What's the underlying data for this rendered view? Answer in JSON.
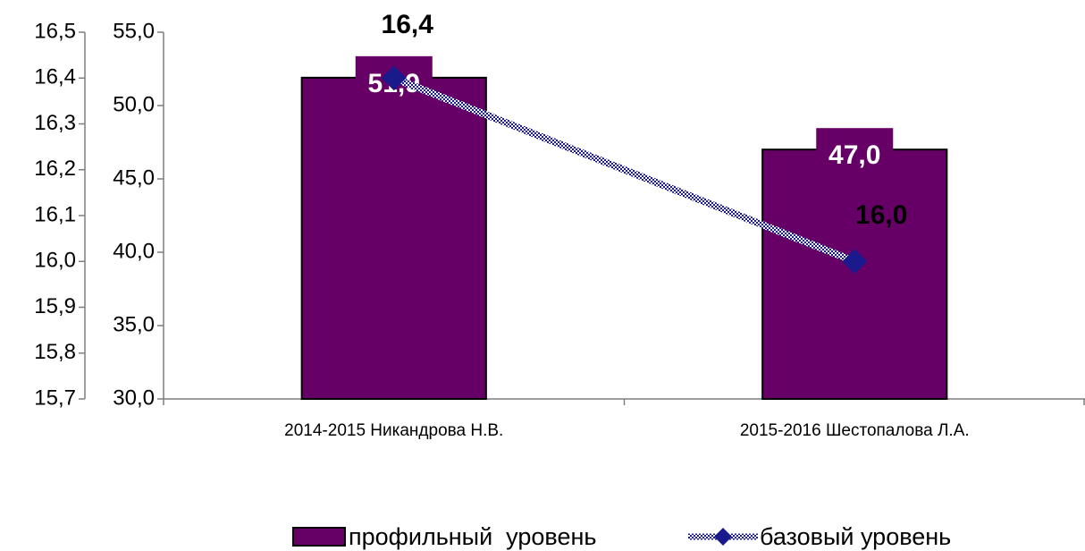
{
  "chart_data": {
    "type": "bar",
    "categories": [
      "2014-2015 Никандрова Н.В.",
      "2015-2016 Шестопалова Л.А."
    ],
    "series": [
      {
        "name": "профильный  уровень",
        "type": "bar",
        "color": "#660066",
        "values": [
          51.9,
          47.0
        ],
        "value_labels": [
          "51,9",
          "47,0"
        ]
      },
      {
        "name": "базовый уровень",
        "type": "line",
        "axis": "y2",
        "color": "#1a1a8c",
        "values": [
          16.4,
          16.0
        ],
        "value_labels": [
          "16,4",
          "16,0"
        ]
      }
    ],
    "ylim": [
      30,
      55
    ],
    "yticks": [
      {
        "value": 30,
        "label": "30,0"
      },
      {
        "value": 35,
        "label": "35,0"
      },
      {
        "value": 40,
        "label": "40,0"
      },
      {
        "value": 45,
        "label": "45,0"
      },
      {
        "value": 50,
        "label": "50,0"
      },
      {
        "value": 55,
        "label": "55,0"
      }
    ],
    "y2lim": [
      15.7,
      16.5
    ],
    "y2ticks": [
      {
        "value": 15.7,
        "label": "15,7"
      },
      {
        "value": 15.8,
        "label": "15,8"
      },
      {
        "value": 15.9,
        "label": "15,9"
      },
      {
        "value": 16.0,
        "label": "16,0"
      },
      {
        "value": 16.1,
        "label": "16,1"
      },
      {
        "value": 16.2,
        "label": "16,2"
      },
      {
        "value": 16.3,
        "label": "16,3"
      },
      {
        "value": 16.4,
        "label": "16,4"
      },
      {
        "value": 16.5,
        "label": "16,5"
      }
    ],
    "legend": "bottom"
  }
}
